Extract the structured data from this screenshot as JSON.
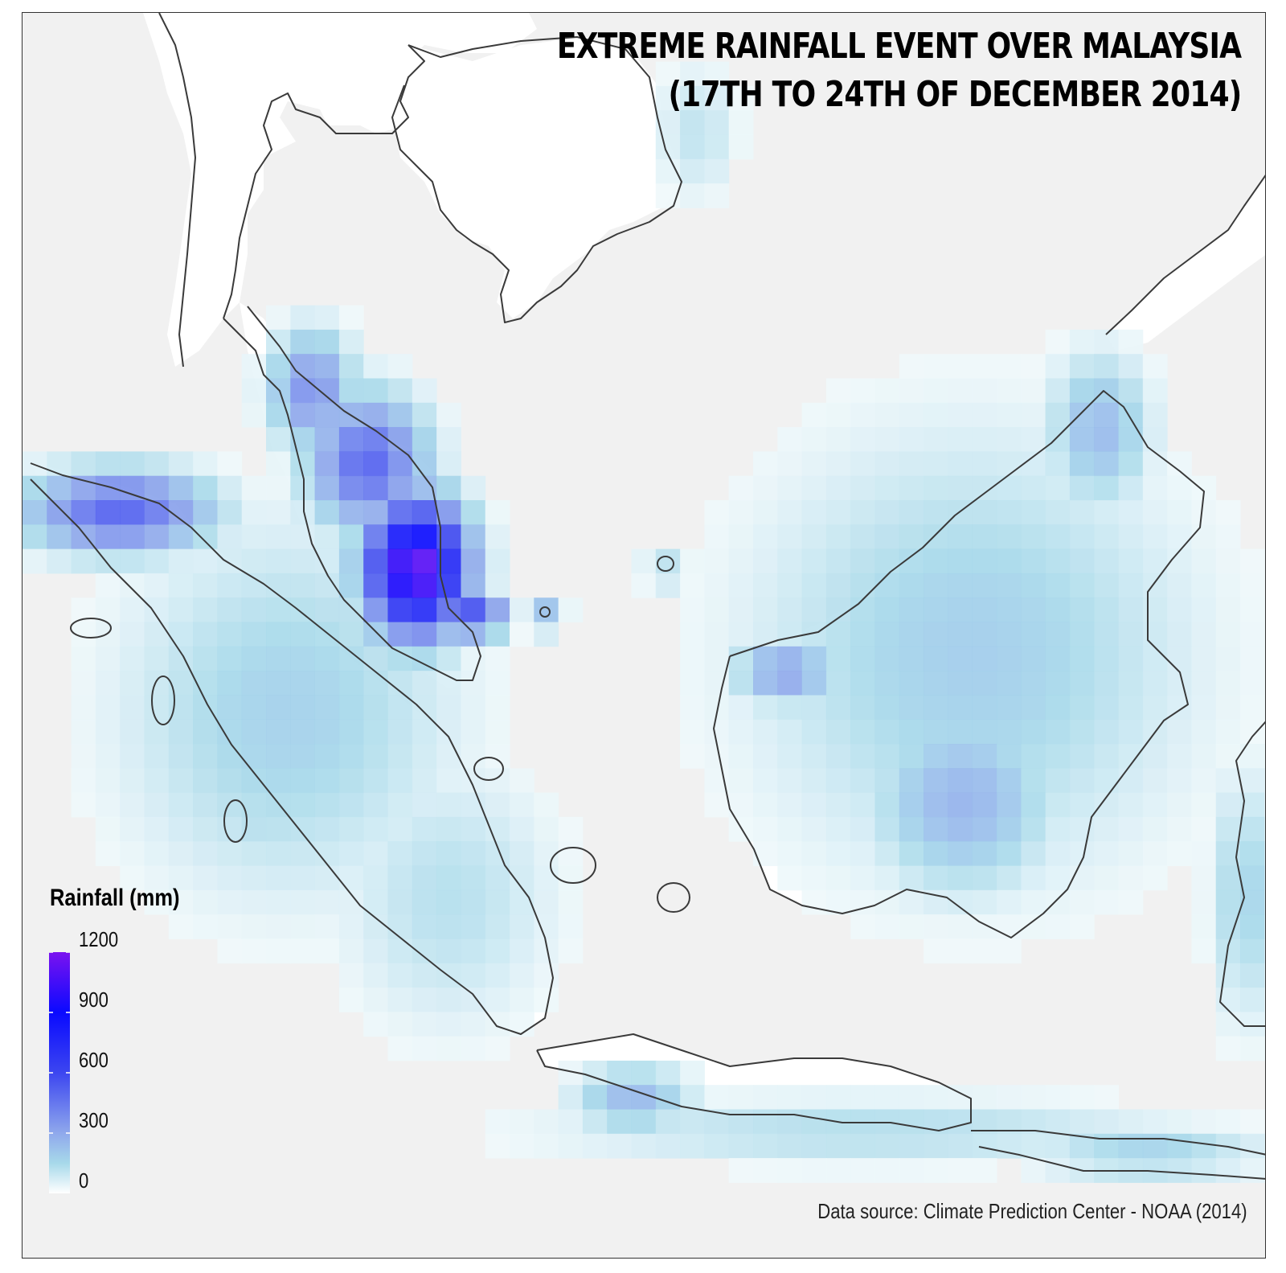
{
  "title": {
    "line1": "EXTREME RAINFALL EVENT OVER MALAYSIA",
    "line2": "(17TH TO 24TH OF DECEMBER 2014)"
  },
  "legend": {
    "title": "Rainfall (mm)",
    "ticks": [
      "1200",
      "900",
      "600",
      "300",
      "0"
    ],
    "tick_values": [
      1200,
      900,
      600,
      300,
      0
    ],
    "range": [
      0,
      1200
    ],
    "colors": [
      "#ffffff",
      "#a7d9ea",
      "#8fa8ec",
      "#3c46f0",
      "#0a0aff",
      "#7b12f0"
    ],
    "color_stops": [
      0,
      150,
      300,
      600,
      900,
      1200
    ]
  },
  "source": "Data source: Climate Prediction Center - NOAA (2014)",
  "colors": {
    "ocean": "#f1f1f1",
    "land": "#ffffff",
    "coastline": "#3a3a3a"
  }
}
